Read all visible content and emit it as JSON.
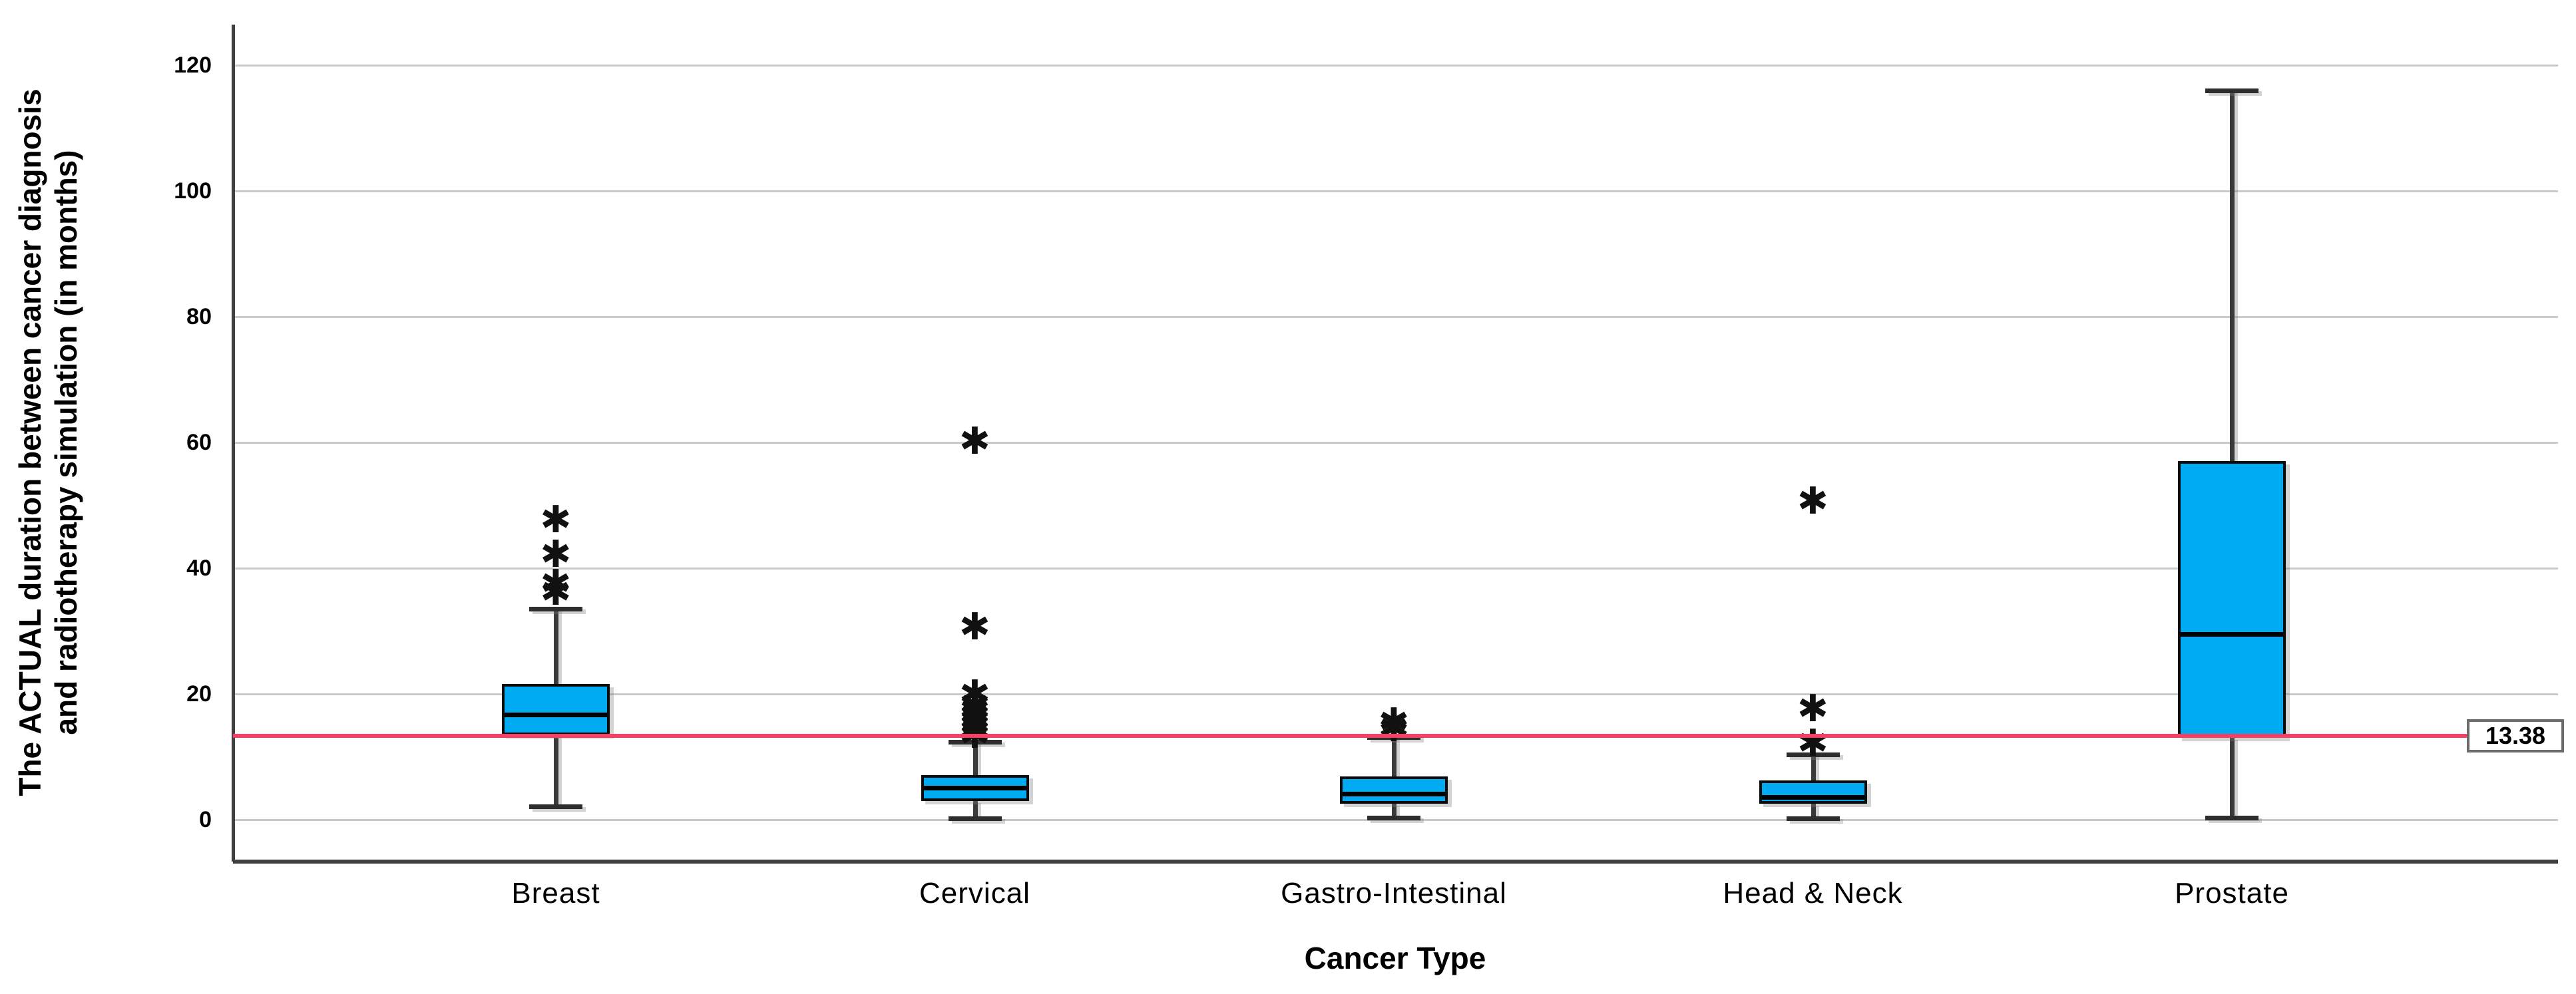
{
  "chart_data": {
    "type": "boxplot",
    "title": "",
    "xlabel": "Cancer Type",
    "ylabel_lines": [
      "The ACTUAL duration between cancer diagnosis",
      "and radiotherapy simulation (in months)"
    ],
    "categories": [
      "Breast",
      "Cervical",
      "Gastro-Intestinal",
      "Head & Neck",
      "Prostate"
    ],
    "yticks": [
      0,
      20,
      40,
      60,
      80,
      100,
      120
    ],
    "ylim": [
      -6.7,
      126.5
    ],
    "grid": true,
    "legend": "none",
    "series": [
      {
        "category": "Breast",
        "min": 2.1,
        "q1": 13.4,
        "median": 16.7,
        "q3": 21.6,
        "max": 33.5,
        "outliers": [
          36,
          37.4,
          42,
          47.5
        ]
      },
      {
        "category": "Cervical",
        "min": 0.2,
        "q1": 3.0,
        "median": 5.1,
        "q3": 7.1,
        "max": 12.4,
        "outliers": [
          13.2,
          14,
          14.8,
          15.6,
          16.4,
          17.2,
          18,
          19.8,
          30.5,
          60
        ]
      },
      {
        "category": "Gastro-Intestinal",
        "min": 0.3,
        "q1": 2.5,
        "median": 4.1,
        "q3": 6.9,
        "max": 13.1,
        "outliers": [
          14.3,
          15.3
        ]
      },
      {
        "category": "Head & Neck",
        "min": 0.2,
        "q1": 2.5,
        "median": 3.6,
        "q3": 6.2,
        "max": 10.4,
        "outliers": [
          12,
          17.5,
          50.5
        ]
      },
      {
        "category": "Prostate",
        "min": 0.3,
        "q1": 13.0,
        "median": 29.5,
        "q3": 57.0,
        "max": 116.0,
        "outliers": []
      }
    ],
    "reference_line": {
      "value": 13.38,
      "label": "13.38"
    },
    "outlier_marker": "✱",
    "colors": {
      "box_fill": "#00abf2",
      "box_border": "#0b0b0b",
      "median": "#000000",
      "whisker": "#3a3a3a",
      "grid": "#c9c9c9",
      "axis": "#3f3f3f",
      "reference_line": "#f93e66",
      "background": "#ffffff",
      "text": "#000000"
    }
  }
}
